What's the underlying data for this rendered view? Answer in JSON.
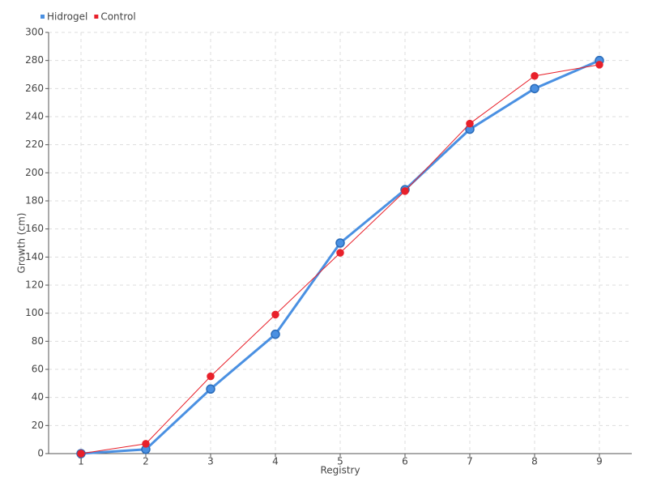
{
  "chart_data": {
    "type": "line",
    "x": [
      1,
      2,
      3,
      4,
      5,
      6,
      7,
      8,
      9
    ],
    "xlim": [
      0.5,
      9.5
    ],
    "xticks": [
      1,
      2,
      3,
      4,
      5,
      6,
      7,
      8,
      9
    ],
    "ylim": [
      0,
      300
    ],
    "yticks": [
      0,
      20,
      40,
      60,
      80,
      100,
      120,
      140,
      160,
      180,
      200,
      220,
      240,
      260,
      280,
      300
    ],
    "x_label": "Registry",
    "y_label": "Growth (cm)",
    "grid": true,
    "legend": "top-left",
    "series": [
      {
        "name": "Hidrogel",
        "color": "#4a90e2",
        "values": [
          0,
          3,
          46,
          85,
          150,
          188,
          231,
          260,
          280
        ]
      },
      {
        "name": "Control",
        "color": "#e8202a",
        "values": [
          0,
          7,
          55,
          99,
          143,
          187,
          235,
          269,
          277
        ]
      }
    ]
  }
}
